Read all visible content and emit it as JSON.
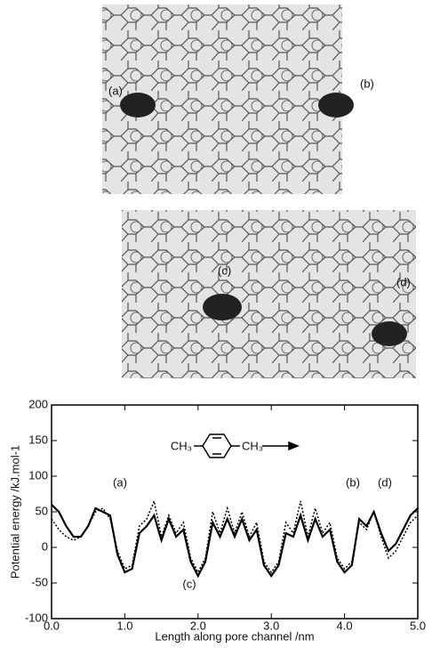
{
  "images": [
    {
      "labels": [
        "(a)",
        "(b)"
      ]
    },
    {
      "labels": [
        "(c)",
        "(d)"
      ]
    }
  ],
  "chart_data": {
    "type": "line",
    "xlabel": "Length along pore channel  /nm",
    "ylabel": "Potential energy  /kJ.mol-1",
    "molecule": [
      "CH₃",
      "CH₃"
    ],
    "annotations": [
      "(a)",
      "(b)",
      "(c)",
      "(d)"
    ],
    "xlim": [
      0,
      5
    ],
    "ylim": [
      -100,
      200
    ],
    "xticks": [
      {
        "value": 0,
        "label": "0.0"
      },
      {
        "value": 1,
        "label": "1.0"
      },
      {
        "value": 2,
        "label": "2.0"
      },
      {
        "value": 3,
        "label": "3.0"
      },
      {
        "value": 4,
        "label": "4.0"
      },
      {
        "value": 5,
        "label": "5.0"
      }
    ],
    "yticks": [
      -100,
      -50,
      0,
      50,
      100,
      150,
      200
    ],
    "x": [
      0,
      0.1,
      0.2,
      0.3,
      0.4,
      0.5,
      0.6,
      0.7,
      0.8,
      0.9,
      1,
      1.1,
      1.2,
      1.3,
      1.4,
      1.5,
      1.6,
      1.7,
      1.8,
      1.9,
      2,
      2.1,
      2.2,
      2.3,
      2.4,
      2.5,
      2.6,
      2.7,
      2.8,
      2.9,
      3,
      3.1,
      3.2,
      3.3,
      3.4,
      3.5,
      3.6,
      3.7,
      3.8,
      3.9,
      4,
      4.1,
      4.2,
      4.3,
      4.4,
      4.5,
      4.6,
      4.7,
      4.8,
      4.9,
      5
    ],
    "series": [
      {
        "color": "#000000",
        "line_style": "solid",
        "values": [
          60,
          50,
          30,
          15,
          15,
          30,
          55,
          50,
          45,
          -10,
          -35,
          -30,
          20,
          30,
          45,
          10,
          40,
          15,
          25,
          -20,
          -40,
          -20,
          35,
          15,
          40,
          15,
          40,
          10,
          25,
          -25,
          -40,
          -25,
          20,
          15,
          45,
          10,
          40,
          15,
          25,
          -20,
          -35,
          -25,
          40,
          30,
          50,
          20,
          -5,
          5,
          25,
          45,
          55
        ]
      },
      {
        "color": "#000000",
        "line_style": "dotted",
        "values": [
          40,
          25,
          15,
          10,
          15,
          30,
          50,
          55,
          40,
          -5,
          -30,
          -25,
          30,
          40,
          65,
          15,
          45,
          20,
          35,
          -15,
          -35,
          -15,
          50,
          20,
          55,
          20,
          50,
          15,
          35,
          -20,
          -35,
          -20,
          35,
          20,
          65,
          15,
          55,
          20,
          35,
          -15,
          -30,
          -20,
          35,
          25,
          50,
          15,
          -15,
          -5,
          15,
          35,
          45
        ]
      }
    ]
  }
}
